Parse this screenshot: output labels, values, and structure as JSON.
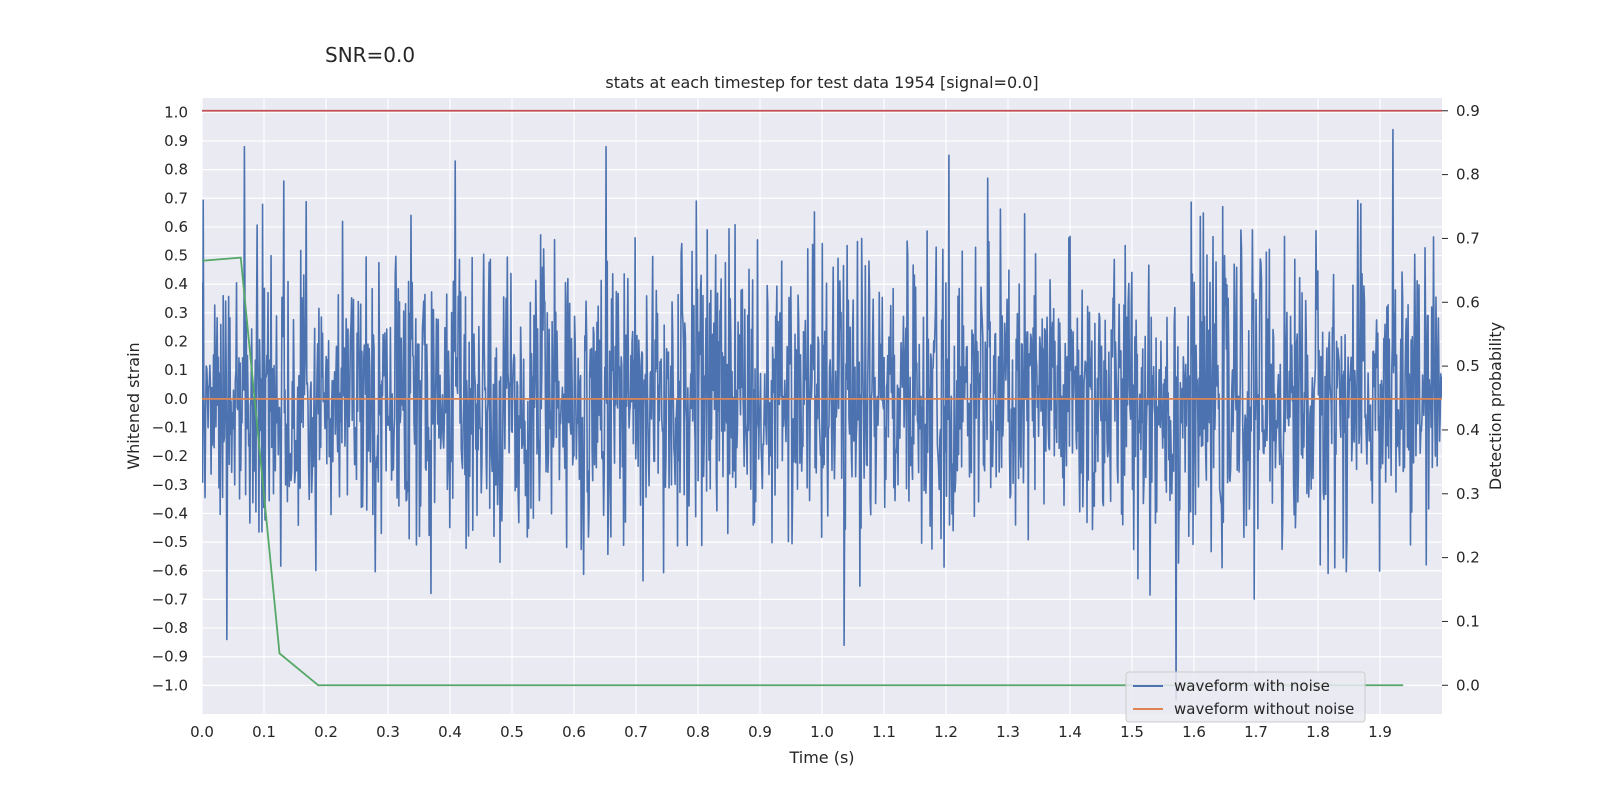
{
  "chart_data": {
    "type": "line",
    "suptitle": "SNR=0.0",
    "title": "stats at each timestep for test data 1954 [signal=0.0]",
    "xlabel": "Time (s)",
    "ylabel": "Whitened strain",
    "y2label": "Detection probability",
    "xlim": [
      0.0,
      2.0
    ],
    "ylim": [
      -1.1,
      1.05
    ],
    "y2lim": [
      -0.045,
      0.92
    ],
    "x_ticks": [
      "0.0",
      "0.1",
      "0.2",
      "0.3",
      "0.4",
      "0.5",
      "0.6",
      "0.7",
      "0.8",
      "0.9",
      "1.0",
      "1.1",
      "1.2",
      "1.3",
      "1.4",
      "1.5",
      "1.6",
      "1.7",
      "1.8",
      "1.9"
    ],
    "y_ticks": [
      "1.0",
      "0.9",
      "0.8",
      "0.7",
      "0.6",
      "0.5",
      "0.4",
      "0.3",
      "0.2",
      "0.1",
      "0.0",
      "−0.1",
      "−0.2",
      "−0.3",
      "−0.4",
      "−0.5",
      "−0.6",
      "−0.7",
      "−0.8",
      "−0.9",
      "−1.0"
    ],
    "y2_ticks": [
      "0.9",
      "0.8",
      "0.7",
      "0.6",
      "0.5",
      "0.4",
      "0.3",
      "0.2",
      "0.1",
      "0.0"
    ],
    "grid": true,
    "legend_position": "lower-right",
    "legend": [
      {
        "label": "waveform with noise",
        "color": "#4c72b0"
      },
      {
        "label": "waveform without noise",
        "color": "#dd8452"
      }
    ],
    "series": [
      {
        "name": "waveform with noise",
        "axis": "left",
        "color": "#4c72b0",
        "kind": "noise",
        "n_points": 2048,
        "std": 0.25,
        "spikes": [
          {
            "x": 0.068,
            "y": 0.88
          },
          {
            "x": 0.132,
            "y": 0.76
          },
          {
            "x": 0.408,
            "y": 0.83
          },
          {
            "x": 0.652,
            "y": 0.88
          },
          {
            "x": 1.205,
            "y": 0.85
          },
          {
            "x": 1.267,
            "y": 0.77
          },
          {
            "x": 1.921,
            "y": 0.94
          },
          {
            "x": 1.036,
            "y": -0.86
          },
          {
            "x": 1.571,
            "y": -1.05
          },
          {
            "x": 0.04,
            "y": -0.84
          }
        ]
      },
      {
        "name": "waveform without noise",
        "axis": "left",
        "color": "#dd8452",
        "x": [
          0.0,
          2.0
        ],
        "y": [
          0.0,
          0.0
        ]
      },
      {
        "name": "detection probability",
        "axis": "right",
        "color": "#55a868",
        "x": [
          0.0,
          0.0625,
          0.125,
          0.1875,
          0.25,
          0.5,
          1.0,
          1.5,
          1.9375
        ],
        "y": [
          0.665,
          0.67,
          0.05,
          0.0,
          0.0,
          0.0,
          0.0,
          0.0,
          0.0
        ]
      },
      {
        "name": "threshold",
        "axis": "right",
        "color": "#c44e52",
        "x": [
          0.0,
          2.0
        ],
        "y": [
          0.9,
          0.9
        ]
      }
    ]
  }
}
